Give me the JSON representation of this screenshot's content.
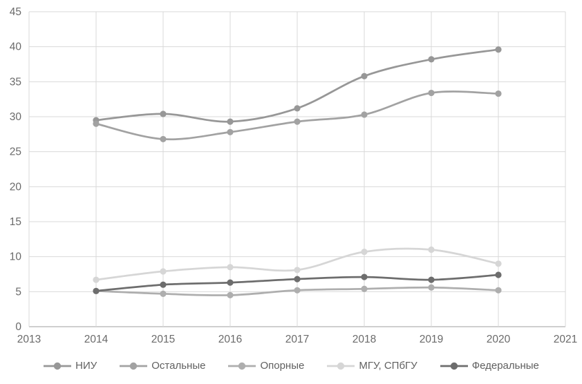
{
  "chart_data": {
    "type": "line",
    "title": "",
    "xlabel": "",
    "ylabel": "",
    "x": [
      2014,
      2015,
      2016,
      2017,
      2018,
      2019,
      2020
    ],
    "series": [
      {
        "name": "НИУ",
        "color": "#979797",
        "values": [
          29.5,
          30.4,
          29.3,
          31.2,
          35.8,
          38.2,
          39.6
        ]
      },
      {
        "name": "Остальные",
        "color": "#a2a2a2",
        "values": [
          29.0,
          26.8,
          27.8,
          29.3,
          30.3,
          33.4,
          33.3
        ]
      },
      {
        "name": "Опорные",
        "color": "#aeaeae",
        "values": [
          5.1,
          4.7,
          4.5,
          5.2,
          5.4,
          5.6,
          5.2
        ]
      },
      {
        "name": "МГУ, СПбГУ",
        "color": "#d6d6d6",
        "values": [
          6.7,
          7.9,
          8.5,
          8.1,
          10.7,
          11.0,
          9.0
        ]
      },
      {
        "name": "Федеральные",
        "color": "#6d6d6d",
        "values": [
          5.1,
          6.0,
          6.3,
          6.8,
          7.1,
          6.7,
          7.4
        ]
      }
    ],
    "xlim": [
      2013,
      2021
    ],
    "ylim": [
      0,
      45
    ],
    "x_tick_labels": [
      "2013",
      "2014",
      "2015",
      "2016",
      "2017",
      "2018",
      "2019",
      "2020",
      "2021"
    ],
    "y_tick_labels": [
      "0",
      "5",
      "10",
      "15",
      "20",
      "25",
      "30",
      "35",
      "40",
      "45"
    ],
    "y_tick_step": 5,
    "grid": true,
    "line_style": "smoothed-with-markers",
    "legend_position": "bottom",
    "colors": {
      "gridline": "#d9d9d9",
      "axis_line": "#bfbfbf",
      "tick_label": "#6a6a6a",
      "legend_label": "#5f5f5f",
      "background": "#ffffff"
    }
  }
}
